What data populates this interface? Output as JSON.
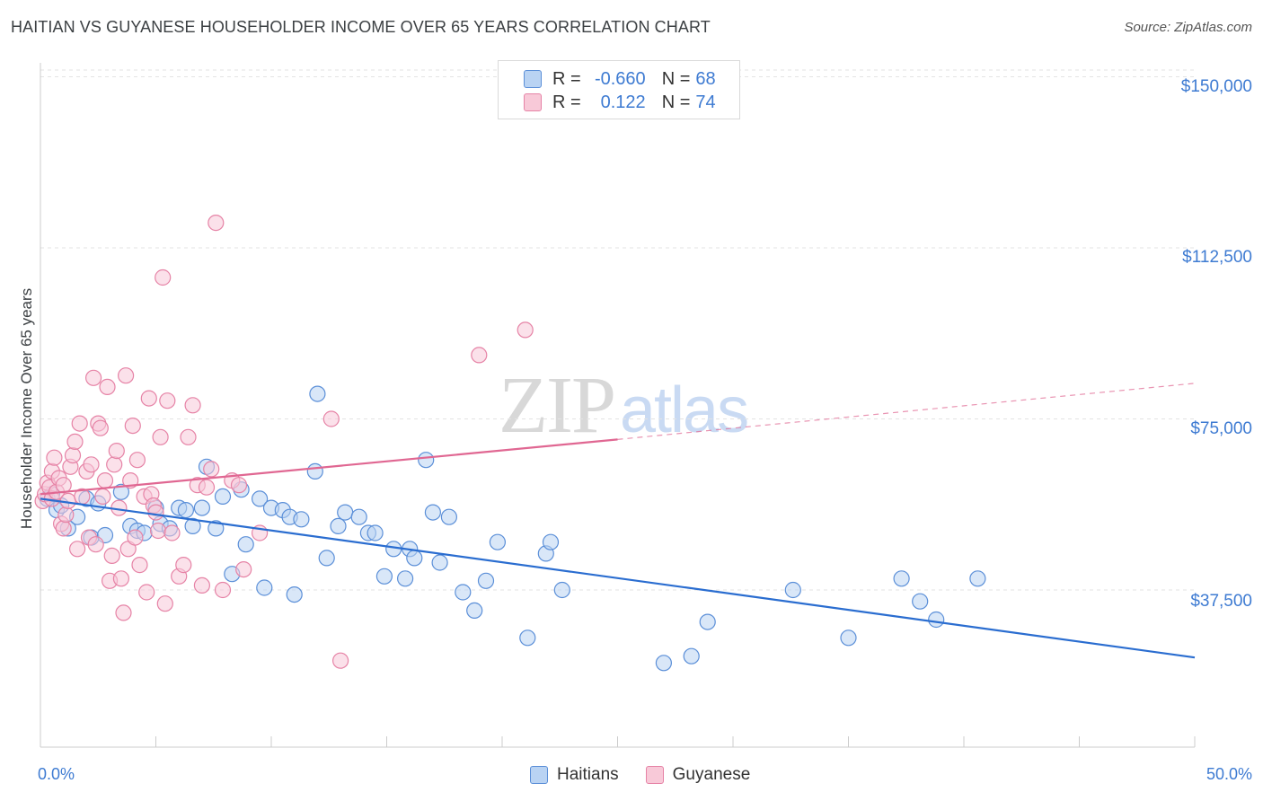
{
  "header": {
    "title": "HAITIAN VS GUYANESE HOUSEHOLDER INCOME OVER 65 YEARS CORRELATION CHART",
    "source": "Source: ZipAtlas.com"
  },
  "watermark": {
    "zip": "ZIP",
    "atlas": "atlas"
  },
  "legend": {
    "rows": [
      {
        "r_label": "R =",
        "r_value": "-0.660",
        "n_label": "N =",
        "n_value": "68"
      },
      {
        "r_label": "R =",
        "r_value": "0.122",
        "n_label": "N =",
        "n_value": "74"
      }
    ]
  },
  "colors": {
    "haitians_fill": "#b9d3f3",
    "haitians_stroke": "#5b8fd8",
    "haitians_line": "#2a6dd0",
    "guyanese_fill": "#f8c9d8",
    "guyanese_stroke": "#e683a6",
    "guyanese_line": "#e06792",
    "grid": "#e3e3e3",
    "axis_text": "#3e7bd2"
  },
  "chart_data": {
    "type": "scatter",
    "title": "HAITIAN VS GUYANESE HOUSEHOLDER INCOME OVER 65 YEARS CORRELATION CHART",
    "xlabel": "",
    "ylabel": "Householder Income Over 65 years",
    "xlim": [
      0,
      50
    ],
    "ylim": [
      0,
      152000
    ],
    "x_tick_labels": [
      "0.0%",
      "50.0%"
    ],
    "y_ticks": [
      37500,
      75000,
      112500,
      150000
    ],
    "y_tick_labels": [
      "$37,500",
      "$75,000",
      "$112,500",
      "$150,000"
    ],
    "grid": true,
    "legend_position": "top-center",
    "series": [
      {
        "name": "Haitians",
        "r": -0.66,
        "n": 68,
        "trend": {
          "x": [
            0,
            50
          ],
          "y": [
            57500,
            22700
          ]
        },
        "points": [
          [
            0.3,
            57500
          ],
          [
            0.5,
            58500
          ],
          [
            0.7,
            55000
          ],
          [
            0.9,
            56000
          ],
          [
            1.2,
            51000
          ],
          [
            1.6,
            53500
          ],
          [
            2.0,
            57500
          ],
          [
            2.2,
            49000
          ],
          [
            2.5,
            56500
          ],
          [
            2.8,
            49500
          ],
          [
            3.5,
            59000
          ],
          [
            3.9,
            51500
          ],
          [
            4.2,
            50500
          ],
          [
            4.5,
            50000
          ],
          [
            5.0,
            55500
          ],
          [
            5.2,
            52000
          ],
          [
            5.6,
            51000
          ],
          [
            6.0,
            55500
          ],
          [
            6.3,
            55000
          ],
          [
            6.6,
            51500
          ],
          [
            7.0,
            55500
          ],
          [
            7.2,
            64500
          ],
          [
            7.6,
            51000
          ],
          [
            7.9,
            58000
          ],
          [
            8.3,
            41000
          ],
          [
            8.7,
            59500
          ],
          [
            8.9,
            47500
          ],
          [
            9.5,
            57500
          ],
          [
            9.7,
            38000
          ],
          [
            10.0,
            55500
          ],
          [
            10.5,
            55000
          ],
          [
            10.8,
            53500
          ],
          [
            11.0,
            36500
          ],
          [
            11.3,
            53000
          ],
          [
            11.9,
            63500
          ],
          [
            12.0,
            80500
          ],
          [
            12.4,
            44500
          ],
          [
            12.9,
            51500
          ],
          [
            13.2,
            54500
          ],
          [
            13.8,
            53500
          ],
          [
            14.2,
            50000
          ],
          [
            14.5,
            50000
          ],
          [
            14.9,
            40500
          ],
          [
            15.3,
            46500
          ],
          [
            15.8,
            40000
          ],
          [
            16.0,
            46500
          ],
          [
            16.2,
            44500
          ],
          [
            16.7,
            66000
          ],
          [
            17.0,
            54500
          ],
          [
            17.3,
            43500
          ],
          [
            17.7,
            53500
          ],
          [
            18.3,
            37000
          ],
          [
            18.8,
            33000
          ],
          [
            19.3,
            39500
          ],
          [
            19.8,
            48000
          ],
          [
            21.1,
            27000
          ],
          [
            21.9,
            45500
          ],
          [
            22.1,
            48000
          ],
          [
            22.6,
            37500
          ],
          [
            27.0,
            21500
          ],
          [
            28.2,
            23000
          ],
          [
            28.9,
            30500
          ],
          [
            32.6,
            37500
          ],
          [
            35.0,
            27000
          ],
          [
            37.3,
            40000
          ],
          [
            38.1,
            35000
          ],
          [
            38.8,
            31000
          ],
          [
            40.6,
            40000
          ]
        ]
      },
      {
        "name": "Guyanese",
        "r": 0.122,
        "n": 74,
        "trend": {
          "x": [
            0,
            25
          ],
          "y": [
            58500,
            70500
          ],
          "dashed_extension": {
            "x": [
              25,
              50
            ],
            "y": [
              70500,
              82800
            ]
          }
        },
        "points": [
          [
            0.1,
            57000
          ],
          [
            0.2,
            58500
          ],
          [
            0.3,
            61000
          ],
          [
            0.4,
            60000
          ],
          [
            0.5,
            57500
          ],
          [
            0.5,
            63500
          ],
          [
            0.6,
            66500
          ],
          [
            0.7,
            59000
          ],
          [
            0.8,
            62000
          ],
          [
            0.9,
            52000
          ],
          [
            1.0,
            60500
          ],
          [
            1.0,
            51000
          ],
          [
            1.1,
            54000
          ],
          [
            1.2,
            57000
          ],
          [
            1.3,
            64500
          ],
          [
            1.4,
            67000
          ],
          [
            1.5,
            70000
          ],
          [
            1.6,
            46500
          ],
          [
            1.7,
            74000
          ],
          [
            1.8,
            58000
          ],
          [
            2.0,
            63500
          ],
          [
            2.1,
            49000
          ],
          [
            2.2,
            65000
          ],
          [
            2.3,
            84000
          ],
          [
            2.4,
            47500
          ],
          [
            2.5,
            74000
          ],
          [
            2.6,
            73000
          ],
          [
            2.7,
            58000
          ],
          [
            2.8,
            61500
          ],
          [
            2.9,
            82000
          ],
          [
            3.0,
            39500
          ],
          [
            3.1,
            45000
          ],
          [
            3.2,
            65000
          ],
          [
            3.3,
            68000
          ],
          [
            3.4,
            55500
          ],
          [
            3.5,
            40000
          ],
          [
            3.6,
            32500
          ],
          [
            3.7,
            84500
          ],
          [
            3.8,
            46500
          ],
          [
            3.9,
            61500
          ],
          [
            4.0,
            73500
          ],
          [
            4.1,
            49000
          ],
          [
            4.2,
            66000
          ],
          [
            4.3,
            43000
          ],
          [
            4.5,
            58000
          ],
          [
            4.6,
            37000
          ],
          [
            4.7,
            79500
          ],
          [
            4.8,
            58500
          ],
          [
            4.9,
            56000
          ],
          [
            5.0,
            54500
          ],
          [
            5.1,
            50500
          ],
          [
            5.2,
            71000
          ],
          [
            5.3,
            106000
          ],
          [
            5.4,
            34500
          ],
          [
            5.5,
            79000
          ],
          [
            5.7,
            50000
          ],
          [
            6.0,
            40500
          ],
          [
            6.2,
            43000
          ],
          [
            6.4,
            71000
          ],
          [
            6.6,
            78000
          ],
          [
            6.8,
            60500
          ],
          [
            7.0,
            38500
          ],
          [
            7.2,
            60000
          ],
          [
            7.4,
            64000
          ],
          [
            7.6,
            118000
          ],
          [
            7.9,
            37500
          ],
          [
            8.3,
            61500
          ],
          [
            8.6,
            60500
          ],
          [
            8.8,
            42000
          ],
          [
            9.5,
            50000
          ],
          [
            12.6,
            75000
          ],
          [
            13.0,
            22000
          ],
          [
            19.0,
            89000
          ],
          [
            21.0,
            94500
          ]
        ]
      }
    ]
  },
  "bottom_legend": {
    "items": [
      {
        "label": "Haitians"
      },
      {
        "label": "Guyanese"
      }
    ]
  }
}
